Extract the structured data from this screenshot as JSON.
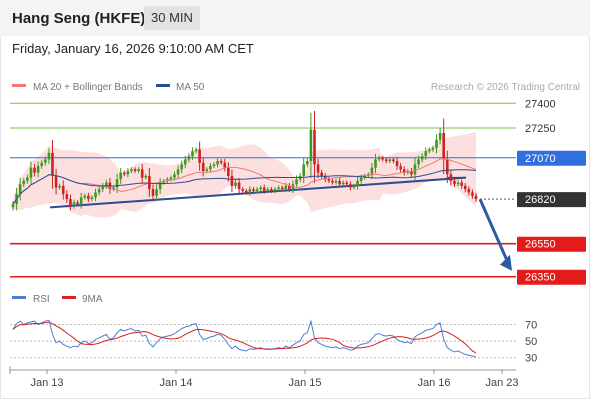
{
  "header": {
    "title": "Hang Seng (HKFE)",
    "period": "30 MIN"
  },
  "datetime": "Friday, January 16, 2026 9:10:00 AM CET",
  "legend": {
    "ma20": "MA 20 + Bollinger Bands",
    "ma50": "MA 50",
    "copyright": "Research © 2026 Trading Central"
  },
  "rsi_legend": {
    "rsi": "RSI",
    "ma9": "9MA"
  },
  "colors": {
    "candle_up": "#3c9a1e",
    "candle_down": "#cc2222",
    "ma20": "#f07878",
    "ma50": "#2a4d8f",
    "band": "#fbd6d6",
    "resistance": "#7cc04a",
    "support": "#e51b1b",
    "pivot": "#2f6fe0",
    "last": "#333333",
    "trend": "#2a4d8f",
    "arrow": "#2e5aa3",
    "rsi": "#4a7fd4",
    "rsi_ma": "#d92020"
  },
  "chart_data": [
    {
      "type": "candlestick",
      "x_tick_labels": [
        "Jan 13",
        "Jan 14",
        "Jan 15",
        "Jan 16",
        "Jan 23"
      ],
      "ylim": [
        26300,
        27450
      ],
      "levels": [
        {
          "value": 27400,
          "label": "27400",
          "kind": "resistance"
        },
        {
          "value": 27250,
          "label": "27250",
          "kind": "resistance"
        },
        {
          "value": 27070,
          "label": "27070",
          "kind": "pivot"
        },
        {
          "value": 26820,
          "label": "26820",
          "kind": "last"
        },
        {
          "value": 26550,
          "label": "26550",
          "kind": "support"
        },
        {
          "value": 26350,
          "label": "26350",
          "kind": "support"
        }
      ],
      "close": [
        26790,
        26850,
        26910,
        26930,
        26950,
        27010,
        26980,
        27020,
        27040,
        27060,
        27100,
        26960,
        26890,
        26900,
        26850,
        26820,
        26780,
        26800,
        26790,
        26830,
        26840,
        26820,
        26830,
        26860,
        26880,
        26900,
        26920,
        26880,
        26890,
        26940,
        26980,
        26970,
        26990,
        27000,
        26990,
        27000,
        26950,
        26960,
        26880,
        26840,
        26880,
        26920,
        26930,
        26940,
        26950,
        26970,
        27000,
        27030,
        27060,
        27080,
        27110,
        27120,
        27040,
        26990,
        27000,
        27020,
        27030,
        27050,
        27040,
        27010,
        26960,
        26900,
        26920,
        26880,
        26870,
        26860,
        26880,
        26870,
        26880,
        26890,
        26870,
        26880,
        26870,
        26880,
        26890,
        26880,
        26900,
        26880,
        26910,
        26940,
        26960,
        27030,
        27050,
        27240,
        27030,
        26980,
        26960,
        26940,
        26930,
        26920,
        26930,
        26910,
        26920,
        26910,
        26890,
        26900,
        26930,
        26950,
        26960,
        26970,
        27010,
        27060,
        27070,
        27060,
        27050,
        27060,
        27050,
        27020,
        27000,
        26980,
        26990,
        26970,
        27030,
        27060,
        27080,
        27110,
        27120,
        27130,
        27180,
        27220,
        27060,
        26970,
        26930,
        26910,
        26920,
        26900,
        26880,
        26860,
        26840,
        26820
      ]
    },
    {
      "type": "line",
      "name": "RSI",
      "y_ticks": [
        70,
        50,
        30
      ],
      "ylim": [
        20,
        85
      ],
      "values": [
        64,
        71,
        74,
        70,
        72,
        73,
        74,
        70,
        72,
        74,
        75,
        58,
        48,
        50,
        46,
        44,
        42,
        44,
        43,
        48,
        50,
        47,
        48,
        52,
        54,
        56,
        58,
        52,
        54,
        60,
        64,
        62,
        64,
        65,
        62,
        63,
        56,
        57,
        47,
        43,
        48,
        53,
        55,
        56,
        57,
        59,
        62,
        65,
        67,
        68,
        70,
        71,
        58,
        52,
        53,
        55,
        56,
        58,
        57,
        52,
        46,
        41,
        44,
        40,
        39,
        38,
        41,
        40,
        41,
        42,
        40,
        41,
        40,
        41,
        42,
        41,
        44,
        42,
        45,
        48,
        50,
        58,
        60,
        74,
        54,
        48,
        46,
        44,
        43,
        42,
        43,
        41,
        42,
        41,
        39,
        40,
        44,
        46,
        47,
        48,
        53,
        58,
        59,
        57,
        56,
        57,
        56,
        52,
        50,
        48,
        49,
        47,
        55,
        58,
        60,
        63,
        64,
        65,
        70,
        72,
        52,
        42,
        39,
        37,
        38,
        36,
        34,
        33,
        32,
        31
      ]
    }
  ]
}
